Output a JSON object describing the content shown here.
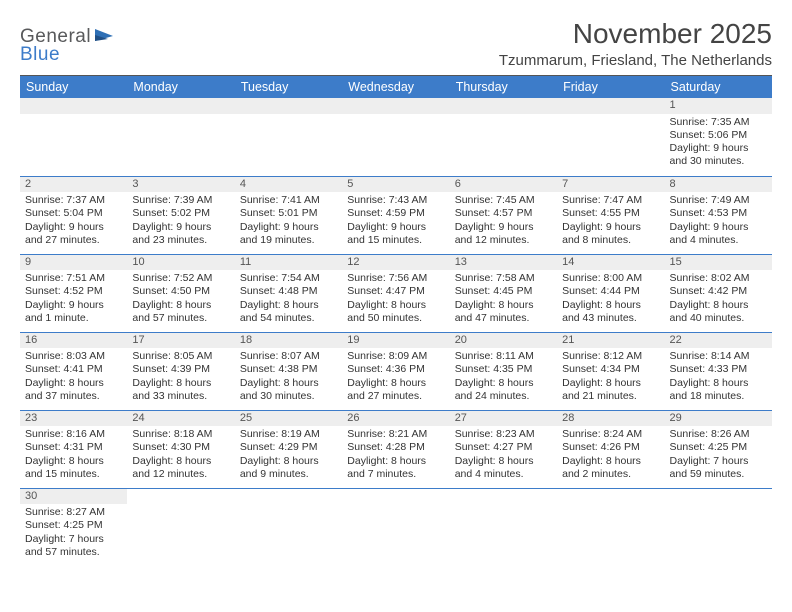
{
  "logo": {
    "part1": "General",
    "part2": "Blue"
  },
  "title": "November 2025",
  "location": "Tzummarum, Friesland, The Netherlands",
  "colors": {
    "header_bg": "#3d7cc9",
    "daynum_bg": "#eeeeee",
    "text": "#333333"
  },
  "weekdays": [
    "Sunday",
    "Monday",
    "Tuesday",
    "Wednesday",
    "Thursday",
    "Friday",
    "Saturday"
  ],
  "weeks": [
    [
      null,
      null,
      null,
      null,
      null,
      null,
      {
        "n": "1",
        "sunrise": "7:35 AM",
        "sunset": "5:06 PM",
        "day_h": "9",
        "day_m": "30 minutes"
      }
    ],
    [
      {
        "n": "2",
        "sunrise": "7:37 AM",
        "sunset": "5:04 PM",
        "day_h": "9",
        "day_m": "27 minutes"
      },
      {
        "n": "3",
        "sunrise": "7:39 AM",
        "sunset": "5:02 PM",
        "day_h": "9",
        "day_m": "23 minutes"
      },
      {
        "n": "4",
        "sunrise": "7:41 AM",
        "sunset": "5:01 PM",
        "day_h": "9",
        "day_m": "19 minutes"
      },
      {
        "n": "5",
        "sunrise": "7:43 AM",
        "sunset": "4:59 PM",
        "day_h": "9",
        "day_m": "15 minutes"
      },
      {
        "n": "6",
        "sunrise": "7:45 AM",
        "sunset": "4:57 PM",
        "day_h": "9",
        "day_m": "12 minutes"
      },
      {
        "n": "7",
        "sunrise": "7:47 AM",
        "sunset": "4:55 PM",
        "day_h": "9",
        "day_m": "8 minutes"
      },
      {
        "n": "8",
        "sunrise": "7:49 AM",
        "sunset": "4:53 PM",
        "day_h": "9",
        "day_m": "4 minutes"
      }
    ],
    [
      {
        "n": "9",
        "sunrise": "7:51 AM",
        "sunset": "4:52 PM",
        "day_h": "9",
        "day_m": "1 minute"
      },
      {
        "n": "10",
        "sunrise": "7:52 AM",
        "sunset": "4:50 PM",
        "day_h": "8",
        "day_m": "57 minutes"
      },
      {
        "n": "11",
        "sunrise": "7:54 AM",
        "sunset": "4:48 PM",
        "day_h": "8",
        "day_m": "54 minutes"
      },
      {
        "n": "12",
        "sunrise": "7:56 AM",
        "sunset": "4:47 PM",
        "day_h": "8",
        "day_m": "50 minutes"
      },
      {
        "n": "13",
        "sunrise": "7:58 AM",
        "sunset": "4:45 PM",
        "day_h": "8",
        "day_m": "47 minutes"
      },
      {
        "n": "14",
        "sunrise": "8:00 AM",
        "sunset": "4:44 PM",
        "day_h": "8",
        "day_m": "43 minutes"
      },
      {
        "n": "15",
        "sunrise": "8:02 AM",
        "sunset": "4:42 PM",
        "day_h": "8",
        "day_m": "40 minutes"
      }
    ],
    [
      {
        "n": "16",
        "sunrise": "8:03 AM",
        "sunset": "4:41 PM",
        "day_h": "8",
        "day_m": "37 minutes"
      },
      {
        "n": "17",
        "sunrise": "8:05 AM",
        "sunset": "4:39 PM",
        "day_h": "8",
        "day_m": "33 minutes"
      },
      {
        "n": "18",
        "sunrise": "8:07 AM",
        "sunset": "4:38 PM",
        "day_h": "8",
        "day_m": "30 minutes"
      },
      {
        "n": "19",
        "sunrise": "8:09 AM",
        "sunset": "4:36 PM",
        "day_h": "8",
        "day_m": "27 minutes"
      },
      {
        "n": "20",
        "sunrise": "8:11 AM",
        "sunset": "4:35 PM",
        "day_h": "8",
        "day_m": "24 minutes"
      },
      {
        "n": "21",
        "sunrise": "8:12 AM",
        "sunset": "4:34 PM",
        "day_h": "8",
        "day_m": "21 minutes"
      },
      {
        "n": "22",
        "sunrise": "8:14 AM",
        "sunset": "4:33 PM",
        "day_h": "8",
        "day_m": "18 minutes"
      }
    ],
    [
      {
        "n": "23",
        "sunrise": "8:16 AM",
        "sunset": "4:31 PM",
        "day_h": "8",
        "day_m": "15 minutes"
      },
      {
        "n": "24",
        "sunrise": "8:18 AM",
        "sunset": "4:30 PM",
        "day_h": "8",
        "day_m": "12 minutes"
      },
      {
        "n": "25",
        "sunrise": "8:19 AM",
        "sunset": "4:29 PM",
        "day_h": "8",
        "day_m": "9 minutes"
      },
      {
        "n": "26",
        "sunrise": "8:21 AM",
        "sunset": "4:28 PM",
        "day_h": "8",
        "day_m": "7 minutes"
      },
      {
        "n": "27",
        "sunrise": "8:23 AM",
        "sunset": "4:27 PM",
        "day_h": "8",
        "day_m": "4 minutes"
      },
      {
        "n": "28",
        "sunrise": "8:24 AM",
        "sunset": "4:26 PM",
        "day_h": "8",
        "day_m": "2 minutes"
      },
      {
        "n": "29",
        "sunrise": "8:26 AM",
        "sunset": "4:25 PM",
        "day_h": "7",
        "day_m": "59 minutes"
      }
    ],
    [
      {
        "n": "30",
        "sunrise": "8:27 AM",
        "sunset": "4:25 PM",
        "day_h": "7",
        "day_m": "57 minutes"
      },
      null,
      null,
      null,
      null,
      null,
      null
    ]
  ],
  "labels": {
    "sunrise": "Sunrise: ",
    "sunset": "Sunset: ",
    "daylight1": "Daylight: ",
    "daylight2": " hours",
    "daylight3": "and ",
    "daylight4": "."
  }
}
